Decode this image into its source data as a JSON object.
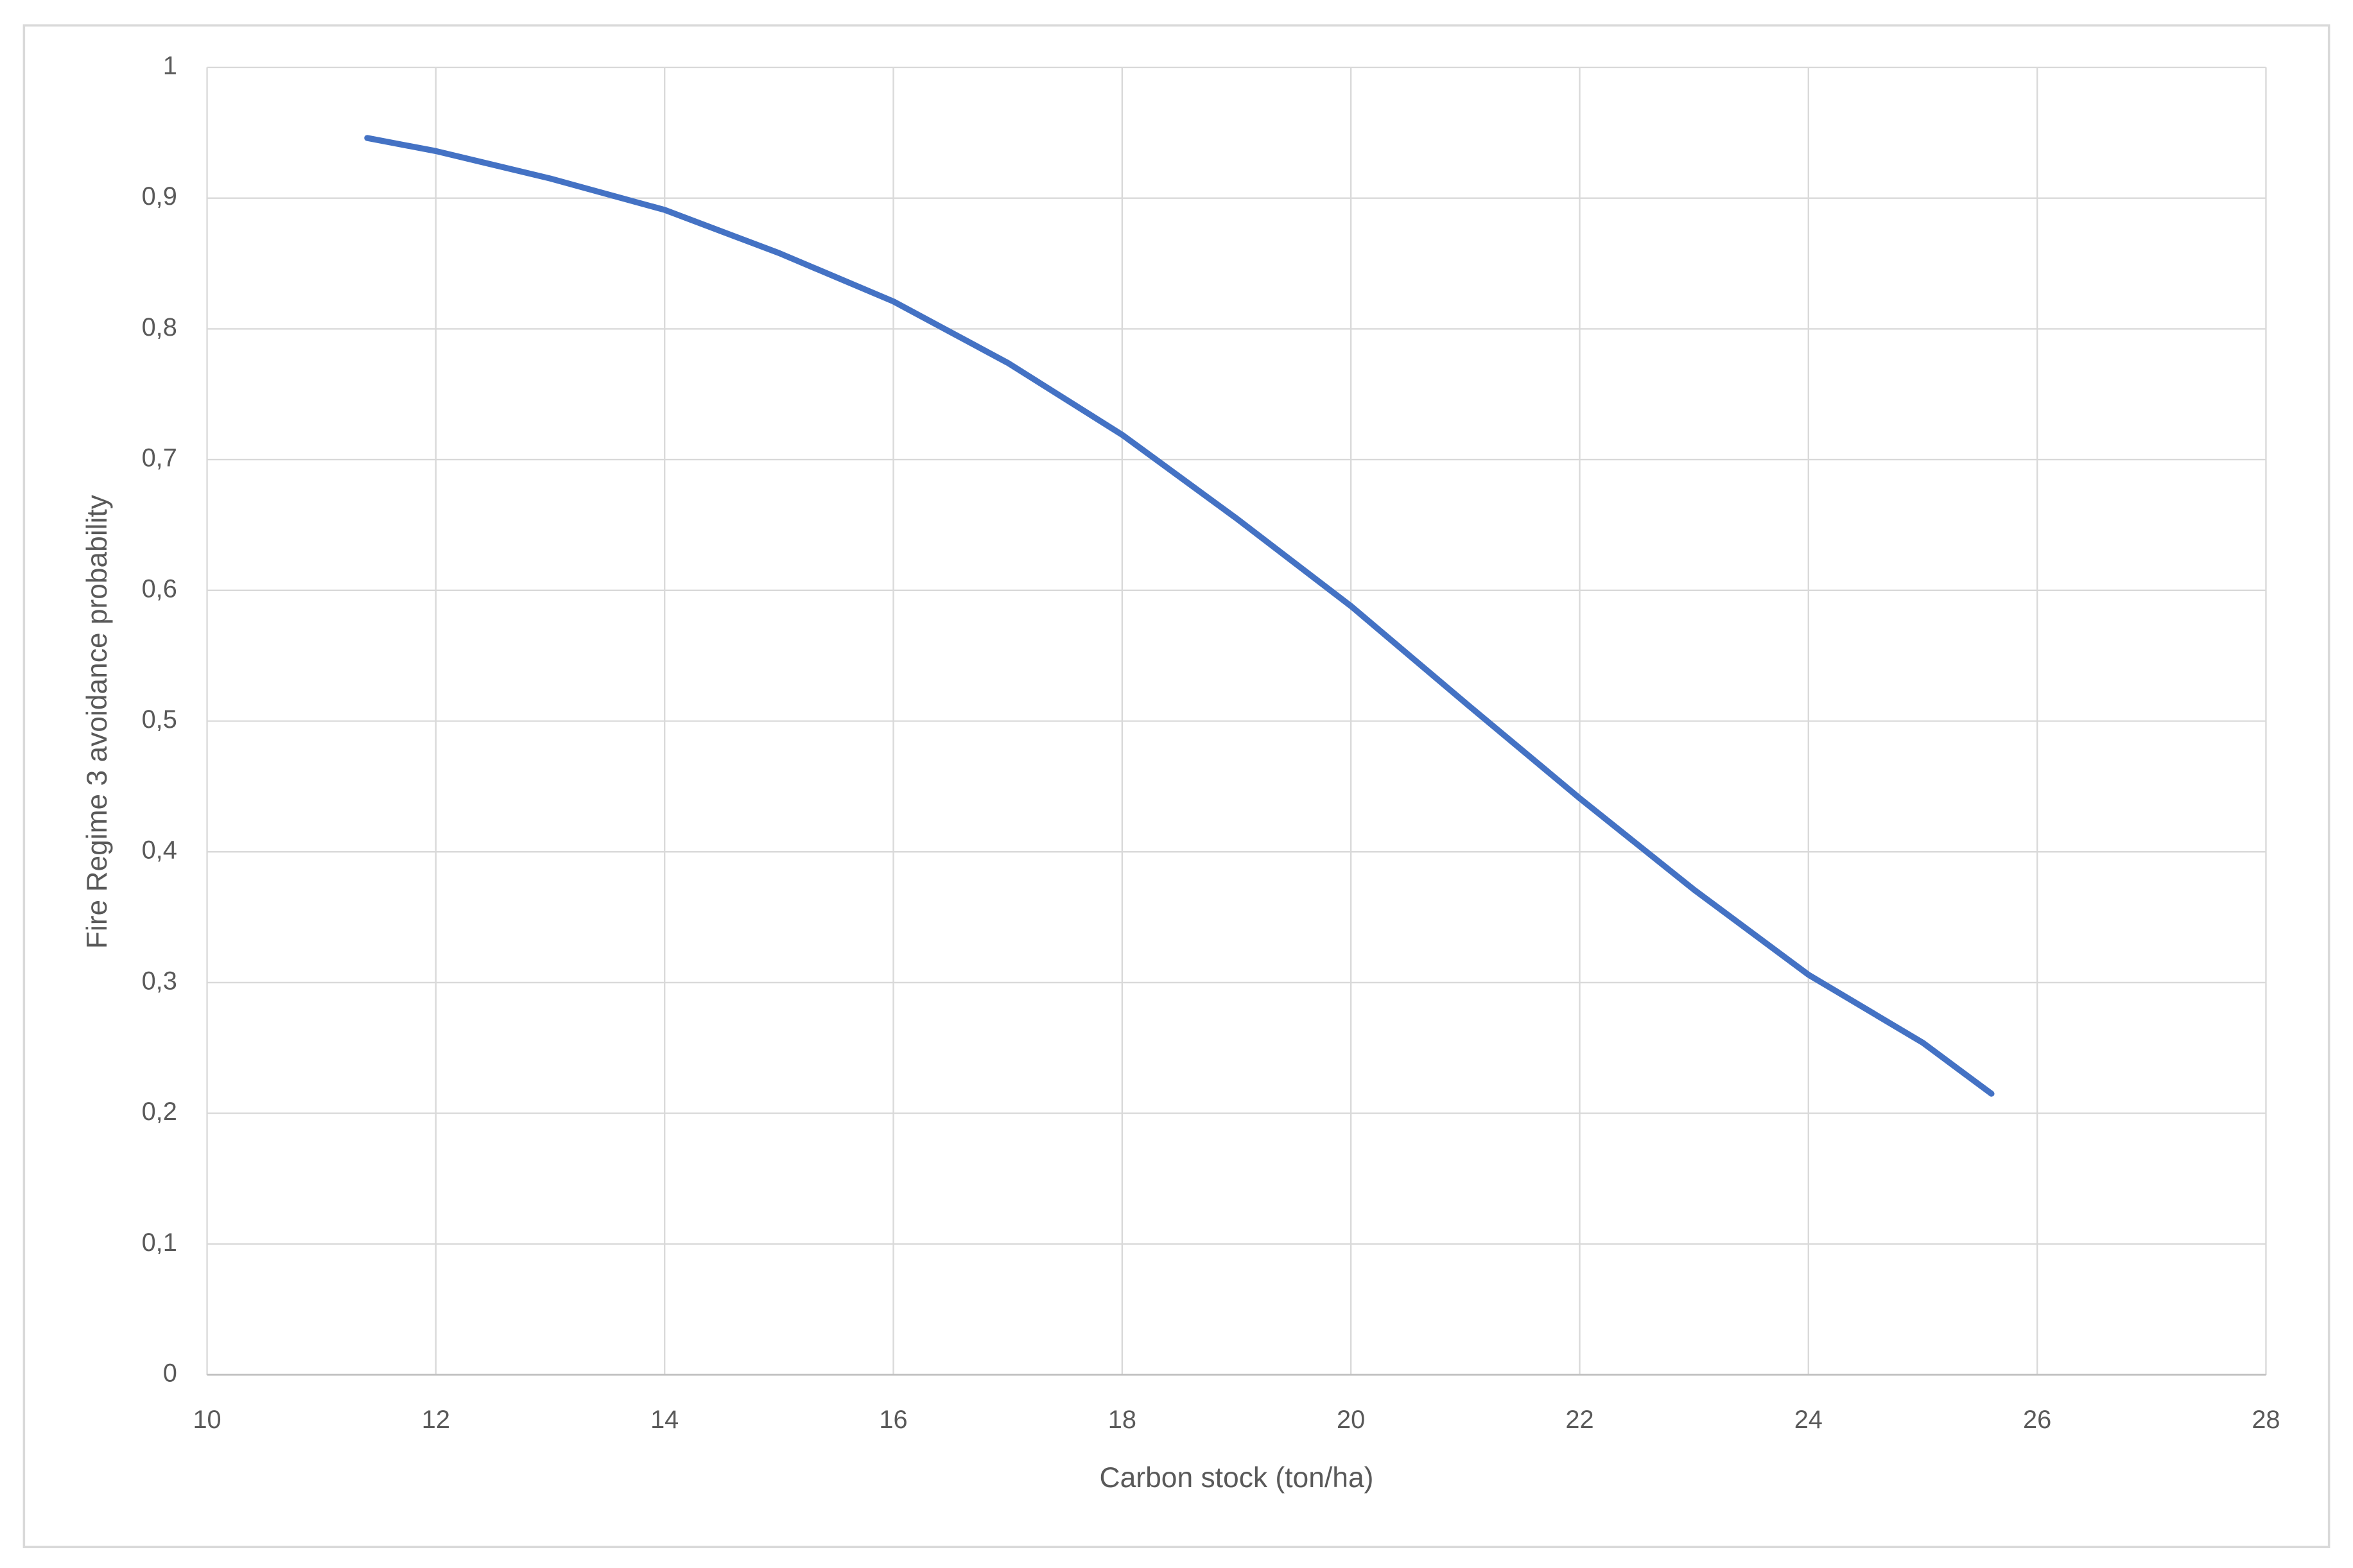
{
  "chart_data": {
    "type": "line",
    "x_label": "Carbon stock (ton/ha)",
    "y_label": "Fire Regime 3 avoidance probability",
    "x": [
      11.4,
      12,
      13,
      14,
      15,
      16,
      17,
      18,
      19,
      20,
      21,
      22,
      23,
      24,
      25,
      25.6
    ],
    "series": [
      {
        "color": "#4472c4",
        "values": [
          0.946,
          0.936,
          0.915,
          0.891,
          0.858,
          0.821,
          0.774,
          0.719,
          0.655,
          0.588,
          0.514,
          0.441,
          0.371,
          0.306,
          0.254,
          0.215
        ]
      }
    ],
    "xlim": [
      10,
      28
    ],
    "xticks": [
      10,
      12,
      14,
      16,
      18,
      20,
      22,
      24,
      26,
      28
    ],
    "ylim": [
      0,
      1
    ],
    "yticks": [
      0,
      {
        "value": 0.1,
        "label": "0,1"
      },
      {
        "value": 0.2,
        "label": "0,2"
      },
      {
        "value": 0.3,
        "label": "0,3"
      },
      {
        "value": 0.4,
        "label": "0,4"
      },
      {
        "value": 0.5,
        "label": "0,5"
      },
      {
        "value": 0.6,
        "label": "0,6"
      },
      {
        "value": 0.7,
        "label": "0,7"
      },
      {
        "value": 0.8,
        "label": "0,8"
      },
      {
        "value": 0.9,
        "label": "0,9"
      },
      1
    ],
    "grid": true
  }
}
